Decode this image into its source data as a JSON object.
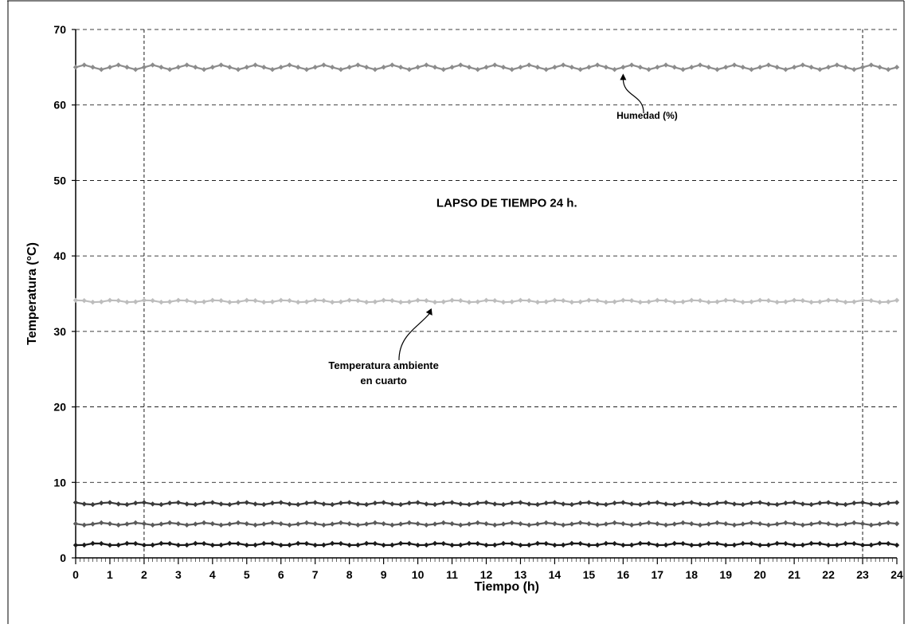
{
  "chart_data": {
    "type": "line",
    "title": "LAPSO DE TIEMPO  24 h.",
    "xlabel": "Tiempo  (h)",
    "ylabel": "Temperatura (°C)",
    "xlim": [
      0,
      24
    ],
    "ylim": [
      0,
      70
    ],
    "x_ticks": [
      "0",
      "1",
      "2",
      "3",
      "4",
      "5",
      "6",
      "7",
      "8",
      "9",
      "10",
      "11",
      "12",
      "13",
      "14",
      "15",
      "16",
      "17",
      "18",
      "19",
      "20",
      "21",
      "22",
      "23",
      "24"
    ],
    "y_ticks": [
      "0",
      "10",
      "20",
      "30",
      "40",
      "50",
      "60",
      "70"
    ],
    "grid": "horizontal dashed",
    "vertical_markers": [
      2,
      23
    ],
    "samples_per_hour": 4,
    "annotations": [
      {
        "text": "Humedad (%)",
        "target_x": 16,
        "target_y": 65
      },
      {
        "text": "Temperatura ambiente",
        "text2": "en cuarto",
        "target_x": 10.4,
        "target_y": 33.9
      }
    ],
    "series": [
      {
        "base": 65.0,
        "amplitude": 0.3,
        "period_h": 1.0,
        "color": "#8c8c8c"
      },
      {
        "base": 34.0,
        "amplitude": 0.15,
        "period_h": 1.0,
        "color": "#bdbdbd"
      },
      {
        "base": 7.2,
        "amplitude": 0.15,
        "period_h": 1.0,
        "color": "#3a3a3a"
      },
      {
        "base": 4.5,
        "amplitude": 0.15,
        "period_h": 1.0,
        "color": "#5a5a5a"
      },
      {
        "base": 1.8,
        "amplitude": 0.15,
        "period_h": 1.0,
        "color": "#1a1a1a"
      }
    ]
  }
}
